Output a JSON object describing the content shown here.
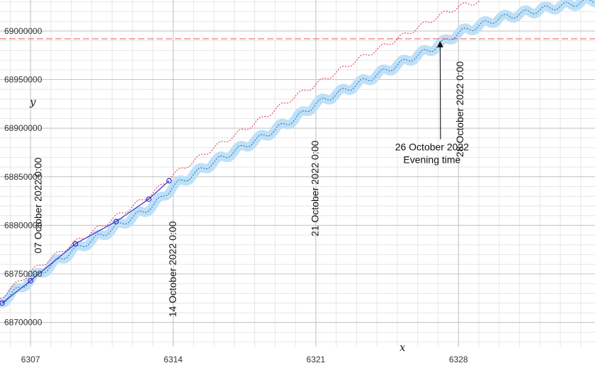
{
  "chart_data": {
    "type": "line",
    "title": "",
    "xlabel": "x",
    "ylabel": "y",
    "xlim": [
      6305.5,
      6334.7
    ],
    "ylim": [
      68675000,
      69032000
    ],
    "grid": true,
    "x_major_ticks": [
      6307,
      6314,
      6321,
      6328
    ],
    "x_tick_labels": [
      "6307",
      "6314",
      "6321",
      "6328"
    ],
    "y_major_ticks": [
      68700000,
      68750000,
      68800000,
      68850000,
      68900000,
      68950000,
      69000000
    ],
    "y_tick_labels": [
      "68700000",
      "68750000",
      "68800000",
      "68850000",
      "68900000",
      "68950000",
      "69000000"
    ],
    "colors": {
      "band": "#bfe0f7",
      "blue_dotted": "#1f77b4",
      "red_dotted": "#e8384f",
      "marker_line": "#3a2fc8",
      "hline": "#e05a5a"
    },
    "series": [
      {
        "style": "wavy band with dotted center line",
        "x": [
          6305.5,
          6307,
          6309,
          6311,
          6313,
          6314,
          6316,
          6318,
          6320,
          6321,
          6323,
          6325,
          6327,
          6328,
          6330,
          6332,
          6334.7
        ],
        "y": [
          68720000,
          68744000,
          68773000,
          68796000,
          68820000,
          68840000,
          68865000,
          68887000,
          68910000,
          68925000,
          68945000,
          68965000,
          68985000,
          68998000,
          69013000,
          69022000,
          69032000
        ]
      },
      {
        "style": "dotted red",
        "x": [
          6305.5,
          6307,
          6309,
          6311,
          6313,
          6314,
          6316,
          6318,
          6320,
          6321,
          6323,
          6325,
          6327,
          6328,
          6329.2
        ],
        "y": [
          68725000,
          68752000,
          68780000,
          68806000,
          68833000,
          68852000,
          68880000,
          68905000,
          68933000,
          68945000,
          68970000,
          68992000,
          69015000,
          69025000,
          69032000
        ]
      },
      {
        "style": "solid with circle markers",
        "x": [
          6305.6,
          6307.0,
          6309.2,
          6311.2,
          6312.8,
          6313.8
        ],
        "y": [
          68720000,
          68743000,
          68781000,
          68804000,
          68827000,
          68846000
        ]
      }
    ],
    "hline": {
      "y": 68992000
    },
    "vertical_date_labels": [
      {
        "x": 6307.6,
        "text": "07 October 2022 0:00"
      },
      {
        "x": 6314.2,
        "text": "14 October 2022 0:00"
      },
      {
        "x": 6321.2,
        "text": "21 October 2022 0:00"
      },
      {
        "x": 6328.3,
        "text": "28 October 2022 0:00"
      }
    ],
    "annotation": {
      "line1": "26 October 2022",
      "line2": "Evening time",
      "target_x": 6327.1,
      "target_y": 68992000,
      "text_x": 6326.7,
      "text_y": 68877000
    }
  }
}
